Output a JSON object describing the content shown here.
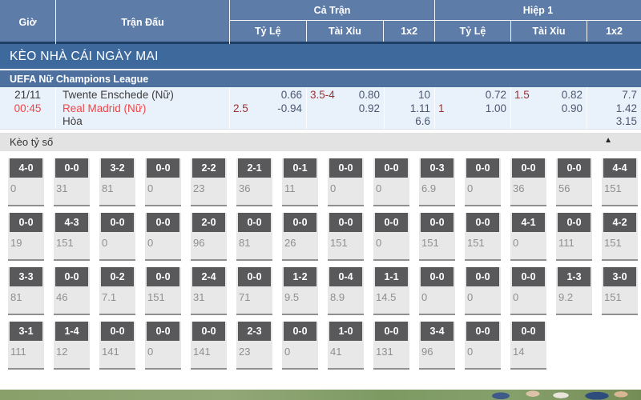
{
  "header": {
    "col_time": "Giờ",
    "col_match": "Trận Đấu",
    "group_full": "Cả Trận",
    "group_half": "Hiệp 1",
    "sub_handicap": "Tỷ Lệ",
    "sub_ou": "Tài Xỉu",
    "sub_1x2": "1x2"
  },
  "banner": {
    "title": "KÈO NHÀ CÁI NGÀY MAI"
  },
  "league": {
    "name": "UEFA Nữ Champions League"
  },
  "match": {
    "date": "21/11",
    "time": "00:45",
    "home": "Twente Enschede (Nữ)",
    "away": "Real Madrid (Nữ)",
    "draw_label": "Hòa",
    "full": {
      "handicap": {
        "line": "2.5",
        "home_odds": "0.66",
        "away_odds": "-0.94"
      },
      "ou": {
        "line": "3.5-4",
        "over_odds": "0.80",
        "under_odds": "0.92"
      },
      "x12": {
        "home": "10",
        "away": "1.11",
        "draw": "6.6"
      }
    },
    "half": {
      "handicap": {
        "line": "1",
        "home_odds": "0.72",
        "away_odds": "1.00"
      },
      "ou": {
        "line": "1.5",
        "over_odds": "0.82",
        "under_odds": "0.90"
      },
      "x12": {
        "home": "7.7",
        "away": "1.42",
        "draw": "3.15"
      }
    }
  },
  "score_section": {
    "title": "Kèo tỷ số",
    "collapse_icon": "▲"
  },
  "score_grid": {
    "rows": [
      [
        {
          "score": "4-0",
          "value": "0"
        },
        {
          "score": "0-0",
          "value": "31"
        },
        {
          "score": "3-2",
          "value": "81"
        },
        {
          "score": "0-0",
          "value": "0"
        },
        {
          "score": "2-2",
          "value": "23"
        },
        {
          "score": "2-1",
          "value": "36"
        },
        {
          "score": "0-1",
          "value": "11"
        },
        {
          "score": "0-0",
          "value": "0"
        },
        {
          "score": "0-0",
          "value": "0"
        },
        {
          "score": "0-3",
          "value": "6.9"
        },
        {
          "score": "0-0",
          "value": "0"
        },
        {
          "score": "0-0",
          "value": "36"
        },
        {
          "score": "0-0",
          "value": "56"
        },
        {
          "score": "4-4",
          "value": "151"
        }
      ],
      [
        {
          "score": "0-0",
          "value": "19"
        },
        {
          "score": "4-3",
          "value": "151"
        },
        {
          "score": "0-0",
          "value": "0"
        },
        {
          "score": "0-0",
          "value": "0"
        },
        {
          "score": "2-0",
          "value": "96"
        },
        {
          "score": "0-0",
          "value": "81"
        },
        {
          "score": "0-0",
          "value": "26"
        },
        {
          "score": "0-0",
          "value": "151"
        },
        {
          "score": "0-0",
          "value": "0"
        },
        {
          "score": "0-0",
          "value": "151"
        },
        {
          "score": "0-0",
          "value": "151"
        },
        {
          "score": "4-1",
          "value": "0"
        },
        {
          "score": "0-0",
          "value": "111"
        },
        {
          "score": "4-2",
          "value": "151"
        }
      ],
      [
        {
          "score": "3-3",
          "value": "81"
        },
        {
          "score": "0-0",
          "value": "46"
        },
        {
          "score": "0-2",
          "value": "7.1"
        },
        {
          "score": "0-0",
          "value": "151"
        },
        {
          "score": "2-4",
          "value": "31"
        },
        {
          "score": "0-0",
          "value": "71"
        },
        {
          "score": "1-2",
          "value": "9.5"
        },
        {
          "score": "0-4",
          "value": "8.9"
        },
        {
          "score": "1-1",
          "value": "14.5"
        },
        {
          "score": "0-0",
          "value": "0"
        },
        {
          "score": "0-0",
          "value": "0"
        },
        {
          "score": "0-0",
          "value": "0"
        },
        {
          "score": "1-3",
          "value": "9.2"
        },
        {
          "score": "3-0",
          "value": "151"
        }
      ],
      [
        {
          "score": "3-1",
          "value": "111"
        },
        {
          "score": "1-4",
          "value": "12"
        },
        {
          "score": "0-0",
          "value": "141"
        },
        {
          "score": "0-0",
          "value": "0"
        },
        {
          "score": "0-0",
          "value": "141"
        },
        {
          "score": "2-3",
          "value": "23"
        },
        {
          "score": "0-0",
          "value": "0"
        },
        {
          "score": "1-0",
          "value": "41"
        },
        {
          "score": "0-0",
          "value": "131"
        },
        {
          "score": "3-4",
          "value": "96"
        },
        {
          "score": "0-0",
          "value": "0"
        },
        {
          "score": "0-0",
          "value": "14"
        },
        null,
        null
      ]
    ]
  }
}
